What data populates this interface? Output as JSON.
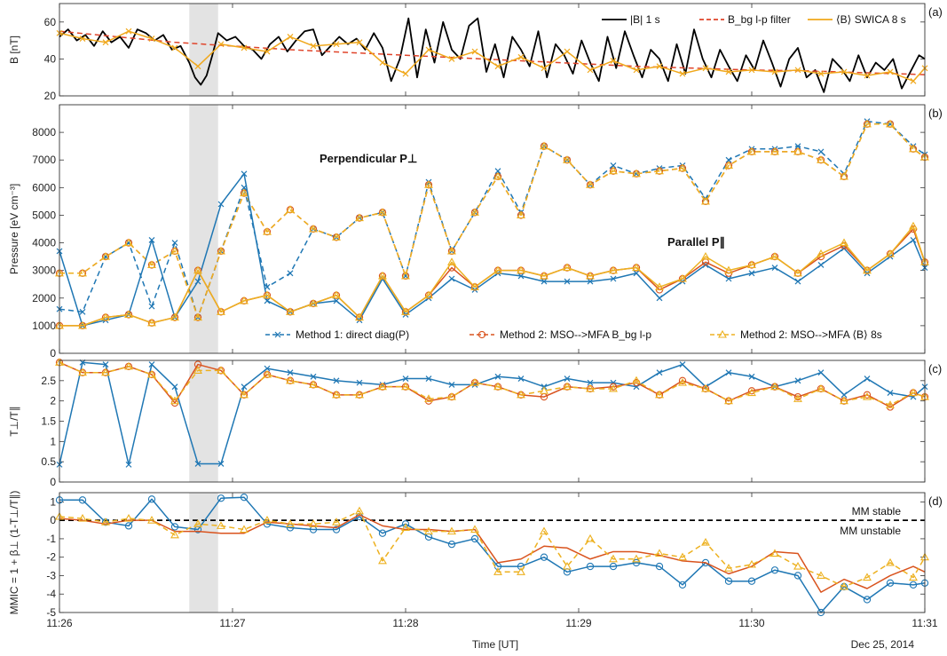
{
  "figure": {
    "xlabel": "Time [UT]",
    "date_label": "Dec 25, 2014",
    "x_ticks": [
      "11:26",
      "11:27",
      "11:28",
      "11:29",
      "11:30",
      "11:31"
    ]
  },
  "chart_data": [
    {
      "type": "line",
      "panel": "(a)",
      "ylabel": "B [nT]",
      "ylim": [
        20,
        70
      ],
      "yticks": [
        20,
        40,
        60
      ],
      "xlim_sec": [
        0,
        300
      ],
      "shaded_interval_sec": [
        45,
        55
      ],
      "legend": [
        "|B| 1 s",
        "B_bg l-p filter",
        "⟨B⟩ SWICA 8 s"
      ],
      "legend_placement": "top-right",
      "series": [
        {
          "name": "|B| 1 s",
          "color": "#000000",
          "style": "solid",
          "x": [
            0,
            3,
            6,
            9,
            12,
            15,
            18,
            21,
            24,
            27,
            30,
            33,
            36,
            39,
            42,
            45,
            47,
            49,
            51,
            53,
            55,
            58,
            61,
            64,
            67,
            70,
            73,
            76,
            79,
            82,
            85,
            88,
            91,
            94,
            97,
            100,
            103,
            106,
            109,
            112,
            115,
            118,
            121,
            124,
            127,
            130,
            133,
            136,
            139,
            142,
            145,
            148,
            151,
            154,
            157,
            160,
            163,
            166,
            169,
            172,
            175,
            178,
            181,
            184,
            187,
            190,
            193,
            196,
            199,
            202,
            205,
            208,
            211,
            214,
            217,
            220,
            223,
            226,
            229,
            232,
            235,
            238,
            241,
            244,
            247,
            250,
            253,
            256,
            259,
            262,
            265,
            268,
            271,
            274,
            277,
            280,
            283,
            286,
            289,
            292,
            295,
            298,
            300
          ],
          "y": [
            52,
            56,
            50,
            53,
            47,
            55,
            49,
            52,
            46,
            56,
            54,
            50,
            53,
            45,
            47,
            38,
            30,
            26,
            31,
            42,
            54,
            50,
            52,
            47,
            45,
            40,
            48,
            52,
            44,
            50,
            55,
            56,
            42,
            47,
            52,
            48,
            51,
            45,
            54,
            46,
            28,
            40,
            62,
            30,
            56,
            38,
            60,
            45,
            40,
            58,
            62,
            33,
            48,
            30,
            52,
            45,
            36,
            55,
            30,
            48,
            42,
            32,
            50,
            38,
            28,
            52,
            35,
            55,
            42,
            30,
            45,
            40,
            28,
            48,
            32,
            56,
            40,
            30,
            45,
            36,
            28,
            42,
            34,
            50,
            38,
            25,
            40,
            46,
            30,
            34,
            22,
            40,
            35,
            28,
            42,
            30,
            38,
            34,
            40,
            24,
            33,
            42,
            40
          ]
        },
        {
          "name": "B_bg l-p filter",
          "color": "#e0442a",
          "style": "dashed",
          "x": [
            0,
            20,
            40,
            60,
            80,
            100,
            120,
            140,
            160,
            180,
            200,
            220,
            240,
            260,
            280,
            300
          ],
          "y": [
            55,
            52,
            49,
            47,
            45,
            43.5,
            42,
            40.5,
            39,
            37.5,
            36,
            35,
            34,
            33.5,
            32.5,
            31.5
          ]
        },
        {
          "name": "⟨B⟩ SWICA 8 s",
          "color": "#f0a81c",
          "style": "solid-x",
          "x": [
            0,
            8,
            16,
            24,
            32,
            40,
            48,
            56,
            64,
            72,
            80,
            88,
            96,
            104,
            112,
            120,
            128,
            136,
            144,
            152,
            160,
            168,
            176,
            184,
            192,
            200,
            208,
            216,
            224,
            232,
            240,
            248,
            256,
            264,
            272,
            280,
            288,
            296,
            300
          ],
          "y": [
            54,
            51,
            49,
            55,
            51,
            46,
            36,
            48,
            46,
            44,
            52,
            47,
            48,
            49,
            38,
            32,
            45,
            40,
            44,
            36,
            41,
            35,
            44,
            34,
            39,
            34,
            36,
            32,
            35,
            33,
            34,
            33,
            34,
            32,
            33,
            31,
            33,
            28,
            35
          ]
        }
      ]
    },
    {
      "type": "line",
      "panel": "(b)",
      "ylabel": "Pressure [eV cm⁻³]",
      "ylim": [
        0,
        9000
      ],
      "yticks": [
        0,
        1000,
        2000,
        3000,
        4000,
        5000,
        6000,
        7000,
        8000
      ],
      "annotations": [
        "Perpendicular P⊥",
        "Parallel P∥"
      ],
      "legend": [
        "Method 1: direct diag(P)",
        "Method 2: MSO-->MFA B_bg l-p",
        "Method 2: MSO-->MFA ⟨B⟩ 8s"
      ],
      "legend_placement": "bottom-center",
      "x": [
        0,
        8,
        16,
        24,
        32,
        40,
        48,
        56,
        64,
        72,
        80,
        88,
        96,
        104,
        112,
        120,
        128,
        136,
        144,
        152,
        160,
        168,
        176,
        184,
        192,
        200,
        208,
        216,
        224,
        232,
        240,
        248,
        256,
        264,
        272,
        280,
        288,
        296,
        300
      ],
      "series": [
        {
          "name": "Method 1 perp",
          "color": "#1f77b4",
          "style": "dashed-x",
          "y": [
            1600,
            1500,
            3500,
            4000,
            1700,
            4000,
            1300,
            3700,
            6000,
            2400,
            2900,
            4500,
            4200,
            4900,
            5100,
            2800,
            6200,
            3700,
            5100,
            6600,
            5100,
            7500,
            7000,
            6100,
            6800,
            6500,
            6700,
            6800,
            5600,
            7000,
            7400,
            7400,
            7500,
            7300,
            6500,
            8400,
            8300,
            7500,
            7200
          ]
        },
        {
          "name": "Method 2 B_bg perp",
          "color": "#d9531e",
          "style": "dashed-o",
          "y": [
            2900,
            2900,
            3500,
            4000,
            3200,
            3700,
            1300,
            3700,
            5800,
            4400,
            5200,
            4500,
            4200,
            4900,
            5100,
            2800,
            6100,
            3700,
            5100,
            6400,
            5000,
            7500,
            7000,
            6100,
            6600,
            6500,
            6600,
            6700,
            5500,
            6800,
            7300,
            7300,
            7300,
            7000,
            6400,
            8300,
            8300,
            7400,
            7100
          ]
        },
        {
          "name": "Method 2 <B> perp",
          "color": "#edb120",
          "style": "dashed-tri",
          "y": [
            2900,
            2900,
            3500,
            4000,
            3200,
            3700,
            1300,
            3700,
            5800,
            4400,
            5200,
            4500,
            4200,
            4900,
            5100,
            2800,
            6100,
            3700,
            5100,
            6400,
            5000,
            7500,
            7000,
            6100,
            6600,
            6500,
            6600,
            6700,
            5500,
            6800,
            7300,
            7300,
            7300,
            7000,
            6400,
            8300,
            8300,
            7400,
            7100
          ]
        },
        {
          "name": "Method 1 par",
          "color": "#1f77b4",
          "style": "solid-x",
          "y": [
            3700,
            1000,
            1200,
            1400,
            4100,
            1300,
            2600,
            5400,
            6500,
            1900,
            1500,
            1800,
            1900,
            1200,
            2700,
            1400,
            2000,
            2700,
            2300,
            2900,
            2800,
            2600,
            2600,
            2600,
            2700,
            2900,
            2000,
            2600,
            3200,
            2700,
            2900,
            3100,
            2600,
            3200,
            3800,
            2900,
            3500,
            4100,
            3100
          ]
        },
        {
          "name": "Method 2 B_bg par",
          "color": "#d9531e",
          "style": "solid-o",
          "y": [
            1000,
            1000,
            1300,
            1400,
            1100,
            1300,
            3000,
            1500,
            1900,
            2100,
            1500,
            1800,
            2100,
            1300,
            2800,
            1500,
            2100,
            3100,
            2400,
            3000,
            3000,
            2800,
            3100,
            2800,
            3000,
            3100,
            2300,
            2700,
            3300,
            2900,
            3200,
            3500,
            2900,
            3500,
            3900,
            3000,
            3600,
            4500,
            3300
          ]
        },
        {
          "name": "Method 2 <B> par",
          "color": "#edb120",
          "style": "solid-tri",
          "y": [
            1000,
            1000,
            1300,
            1400,
            1100,
            1300,
            3000,
            1500,
            1900,
            2100,
            1500,
            1800,
            2100,
            1300,
            2800,
            1500,
            2100,
            3300,
            2400,
            3000,
            3000,
            2800,
            3100,
            2800,
            3000,
            3100,
            2400,
            2700,
            3500,
            3000,
            3200,
            3500,
            2900,
            3600,
            4000,
            3000,
            3600,
            4600,
            3300
          ]
        }
      ]
    },
    {
      "type": "line",
      "panel": "(c)",
      "ylabel": "T⊥/T∥",
      "ylim": [
        0,
        3
      ],
      "yticks": [
        0,
        0.5,
        1,
        1.5,
        2,
        2.5
      ],
      "x": [
        0,
        8,
        16,
        24,
        32,
        40,
        48,
        56,
        64,
        72,
        80,
        88,
        96,
        104,
        112,
        120,
        128,
        136,
        144,
        152,
        160,
        168,
        176,
        184,
        192,
        200,
        208,
        216,
        224,
        232,
        240,
        248,
        256,
        264,
        272,
        280,
        288,
        296,
        300
      ],
      "series": [
        {
          "name": "Method 1",
          "color": "#1f77b4",
          "style": "solid-x",
          "y": [
            0.43,
            2.95,
            2.9,
            0.43,
            2.9,
            2.35,
            0.45,
            0.45,
            2.35,
            2.8,
            2.7,
            2.6,
            2.5,
            2.45,
            2.4,
            2.55,
            2.55,
            2.4,
            2.4,
            2.6,
            2.55,
            2.35,
            2.55,
            2.45,
            2.45,
            2.35,
            2.7,
            2.9,
            2.35,
            2.7,
            2.6,
            2.35,
            2.5,
            2.7,
            2.15,
            2.55,
            2.2,
            2.1,
            2.35
          ]
        },
        {
          "name": "Method 2 B_bg",
          "color": "#d9531e",
          "style": "solid-o",
          "y": [
            2.95,
            2.7,
            2.7,
            2.85,
            2.65,
            1.95,
            2.9,
            2.75,
            2.15,
            2.65,
            2.5,
            2.4,
            2.15,
            2.15,
            2.35,
            2.35,
            2.0,
            2.1,
            2.45,
            2.35,
            2.15,
            2.1,
            2.35,
            2.3,
            2.35,
            2.45,
            2.15,
            2.5,
            2.3,
            2.0,
            2.25,
            2.35,
            2.1,
            2.3,
            2.0,
            2.15,
            1.85,
            2.2,
            2.1
          ]
        },
        {
          "name": "Method 2 <B>",
          "color": "#edb120",
          "style": "dashed-tri",
          "y": [
            2.95,
            2.7,
            2.7,
            2.85,
            2.65,
            2.0,
            2.75,
            2.75,
            2.15,
            2.65,
            2.5,
            2.4,
            2.15,
            2.15,
            2.35,
            2.35,
            2.05,
            2.1,
            2.45,
            2.35,
            2.15,
            2.25,
            2.35,
            2.3,
            2.3,
            2.5,
            2.15,
            2.45,
            2.3,
            2.0,
            2.2,
            2.35,
            2.05,
            2.3,
            2.0,
            2.1,
            1.9,
            2.2,
            2.1
          ]
        }
      ]
    },
    {
      "type": "line",
      "panel": "(d)",
      "ylabel": "MMIC = 1 + β⊥ (1-T⊥/T∥)",
      "ylim": [
        -5,
        1.5
      ],
      "yticks": [
        -5,
        -4,
        -3,
        -2,
        -1,
        0,
        1
      ],
      "threshold_labels": [
        "MM stable",
        "MM unstable"
      ],
      "x": [
        0,
        8,
        16,
        24,
        32,
        40,
        48,
        56,
        64,
        72,
        80,
        88,
        96,
        104,
        112,
        120,
        128,
        136,
        144,
        152,
        160,
        168,
        176,
        184,
        192,
        200,
        208,
        216,
        224,
        232,
        240,
        248,
        256,
        264,
        272,
        280,
        288,
        296,
        300
      ],
      "series": [
        {
          "name": "Method 1",
          "color": "#1f77b4",
          "style": "solid-o",
          "y": [
            1.1,
            1.1,
            -0.1,
            -0.3,
            1.15,
            -0.35,
            -0.5,
            1.2,
            1.25,
            -0.2,
            -0.4,
            -0.5,
            -0.5,
            0.2,
            -0.7,
            -0.2,
            -0.9,
            -1.3,
            -1.0,
            -2.5,
            -2.5,
            -2.0,
            -2.8,
            -2.5,
            -2.5,
            -2.3,
            -2.5,
            -3.5,
            -2.3,
            -3.3,
            -3.3,
            -2.7,
            -3.0,
            -5.0,
            -3.6,
            -4.3,
            -3.4,
            -3.5,
            -3.4
          ]
        },
        {
          "name": "Method 2 B_bg",
          "color": "#d9531e",
          "style": "solid",
          "y": [
            0.1,
            0.0,
            -0.2,
            0.0,
            0.0,
            -0.6,
            -0.6,
            -0.7,
            -0.7,
            -0.1,
            -0.2,
            -0.3,
            -0.4,
            0.3,
            -0.3,
            -0.5,
            -0.5,
            -0.6,
            -0.5,
            -2.3,
            -2.1,
            -1.4,
            -1.5,
            -2.1,
            -1.7,
            -1.7,
            -1.9,
            -2.2,
            -2.3,
            -2.9,
            -2.5,
            -1.7,
            -1.8,
            -3.9,
            -3.2,
            -3.7,
            -3.0,
            -2.5,
            -2.8
          ]
        },
        {
          "name": "Method 2 <B>",
          "color": "#edb120",
          "style": "dashed-tri",
          "y": [
            0.2,
            0.1,
            -0.1,
            0.1,
            0.0,
            -0.8,
            -0.2,
            -0.3,
            -0.5,
            0.0,
            -0.2,
            -0.2,
            -0.1,
            0.5,
            -2.2,
            -0.4,
            -0.6,
            -0.6,
            -0.5,
            -2.8,
            -2.8,
            -0.6,
            -2.5,
            -1.0,
            -2.1,
            -2.1,
            -1.8,
            -2.0,
            -1.2,
            -2.6,
            -2.4,
            -1.8,
            -2.5,
            -3.0,
            -3.6,
            -3.1,
            -2.3,
            -3.1,
            -2.0
          ]
        }
      ]
    }
  ]
}
